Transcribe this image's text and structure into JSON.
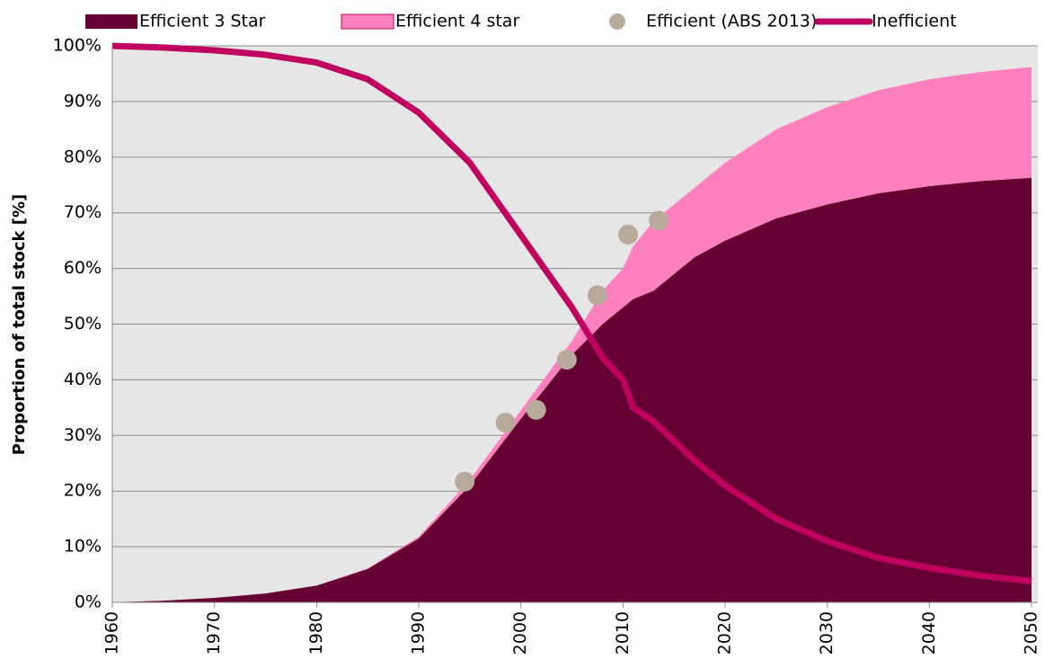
{
  "chart_data": {
    "type": "area",
    "y_label": "Proportion of total stock [%]",
    "x": [
      1960,
      1965,
      1970,
      1975,
      1980,
      1985,
      1990,
      1995,
      2000,
      2005,
      2008,
      2010,
      2011,
      2013,
      2015,
      2017,
      2020,
      2025,
      2030,
      2035,
      2040,
      2045,
      2050
    ],
    "series": [
      {
        "name": "Efficient 3 Star",
        "type": "area",
        "color": "#660033",
        "values": [
          0,
          0.3,
          0.8,
          1.6,
          3,
          6,
          11.5,
          21,
          33,
          44.5,
          50,
          53,
          54.5,
          56,
          59,
          62,
          65,
          69,
          71.5,
          73.5,
          74.8,
          75.7,
          76.3
        ]
      },
      {
        "name": "Efficient 4 star",
        "type": "area",
        "color": "#ff80bf",
        "values": [
          0,
          0,
          0,
          0,
          0,
          0.1,
          0.3,
          1,
          1.5,
          2.5,
          6,
          7,
          9.5,
          12.5,
          12.5,
          12.5,
          14,
          16,
          17.5,
          18.5,
          19.2,
          19.6,
          19.9
        ]
      },
      {
        "name": "Efficient (ABS 2013)",
        "type": "scatter",
        "color": "#b8aa9a",
        "x": [
          1994.5,
          1998.5,
          2001.5,
          2004.5,
          2007.5,
          2010.5,
          2013.5
        ],
        "values": [
          21.7,
          32.3,
          34.6,
          43.6,
          55.2,
          66.1,
          68.6
        ]
      },
      {
        "name": "Inefficient",
        "type": "line",
        "color": "#c0005f",
        "values": [
          100,
          99.7,
          99.2,
          98.4,
          97,
          94,
          88,
          79,
          66,
          53,
          44,
          40,
          35,
          32.5,
          29,
          25.5,
          21,
          15,
          11,
          8,
          6.2,
          4.8,
          3.8
        ]
      }
    ],
    "xlim": [
      1960,
      2050
    ],
    "xticks": [
      1960,
      1970,
      1980,
      1990,
      2000,
      2010,
      2020,
      2030,
      2040,
      2050
    ],
    "ylim": [
      0,
      100
    ],
    "yticks": [
      {
        "value": 0,
        "label": "0%"
      },
      {
        "value": 10,
        "label": "10%"
      },
      {
        "value": 20,
        "label": "20%"
      },
      {
        "value": 30,
        "label": "30%"
      },
      {
        "value": 40,
        "label": "40%"
      },
      {
        "value": 50,
        "label": "50%"
      },
      {
        "value": 60,
        "label": "60%"
      },
      {
        "value": 70,
        "label": "70%"
      },
      {
        "value": 80,
        "label": "80%"
      },
      {
        "value": 90,
        "label": "90%"
      },
      {
        "value": 100,
        "label": "100%"
      }
    ],
    "grid": true,
    "legend": "top"
  }
}
